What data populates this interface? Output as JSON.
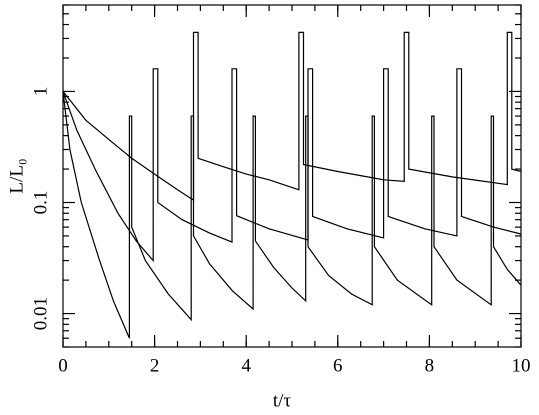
{
  "chart_data": {
    "type": "line",
    "xlabel": "t/τ",
    "ylabel": "L/L₀",
    "xlim": [
      0,
      10
    ],
    "ylim": [
      0.005,
      6
    ],
    "log_y": true,
    "xticks": [
      0,
      2,
      4,
      6,
      8,
      10
    ],
    "yticks": [
      0.01,
      0.1,
      1
    ],
    "series": [
      {
        "color": "#000000",
        "x": [
          0,
          0.15,
          0.4,
          0.8,
          1.1,
          1.45,
          1.45,
          1.5,
          1.5,
          1.8,
          2.3,
          2.8,
          2.8,
          2.85,
          2.85,
          3.2,
          3.7,
          4.15,
          4.15,
          4.2,
          4.2,
          4.6,
          5.0,
          5.3,
          5.3,
          5.35,
          5.35,
          5.8,
          6.3,
          6.75,
          6.75,
          6.8,
          6.8,
          7.3,
          8.05,
          8.05,
          8.1,
          8.1,
          8.6,
          9.35,
          9.35,
          9.4,
          9.4,
          9.7,
          10
        ],
        "values": [
          1,
          0.3,
          0.1,
          0.03,
          0.013,
          0.006,
          0.6,
          0.6,
          0.06,
          0.03,
          0.015,
          0.0088,
          0.6,
          0.6,
          0.05,
          0.028,
          0.016,
          0.011,
          0.6,
          0.6,
          0.045,
          0.026,
          0.017,
          0.013,
          0.6,
          0.6,
          0.04,
          0.022,
          0.015,
          0.012,
          0.6,
          0.6,
          0.04,
          0.02,
          0.012,
          0.6,
          0.6,
          0.04,
          0.02,
          0.012,
          0.6,
          0.6,
          0.04,
          0.025,
          0.018
        ]
      },
      {
        "color": "#000000",
        "x": [
          0,
          0.3,
          0.7,
          1.2,
          1.6,
          1.97,
          1.97,
          2.07,
          2.07,
          2.6,
          3.2,
          3.69,
          3.69,
          3.79,
          3.79,
          4.5,
          5.35,
          5.35,
          5.45,
          5.45,
          6.2,
          7.0,
          7.0,
          7.1,
          7.1,
          7.9,
          8.6,
          8.6,
          8.7,
          8.7,
          9.4,
          10
        ],
        "values": [
          1,
          0.45,
          0.2,
          0.08,
          0.045,
          0.03,
          1.6,
          1.6,
          0.1,
          0.07,
          0.053,
          0.044,
          1.6,
          1.6,
          0.076,
          0.058,
          0.046,
          1.6,
          1.6,
          0.075,
          0.058,
          0.048,
          1.6,
          1.6,
          0.075,
          0.058,
          0.05,
          1.6,
          1.6,
          0.075,
          0.06,
          0.052
        ]
      },
      {
        "color": "#000000",
        "x": [
          0,
          0.5,
          1,
          1.5,
          2,
          2.5,
          2.85,
          2.85,
          2.95,
          2.95,
          3.5,
          4,
          4.5,
          5.15,
          5.15,
          5.25,
          5.25,
          6,
          7,
          7.45,
          7.45,
          7.55,
          7.55,
          8.5,
          9.7,
          9.7,
          9.8,
          9.8,
          10
        ],
        "values": [
          1,
          0.55,
          0.37,
          0.25,
          0.18,
          0.13,
          0.105,
          3.4,
          3.4,
          0.25,
          0.21,
          0.18,
          0.16,
          0.13,
          3.4,
          3.4,
          0.22,
          0.19,
          0.16,
          0.155,
          3.4,
          3.4,
          0.2,
          0.17,
          0.145,
          3.4,
          3.4,
          0.2,
          0.19
        ]
      }
    ]
  }
}
